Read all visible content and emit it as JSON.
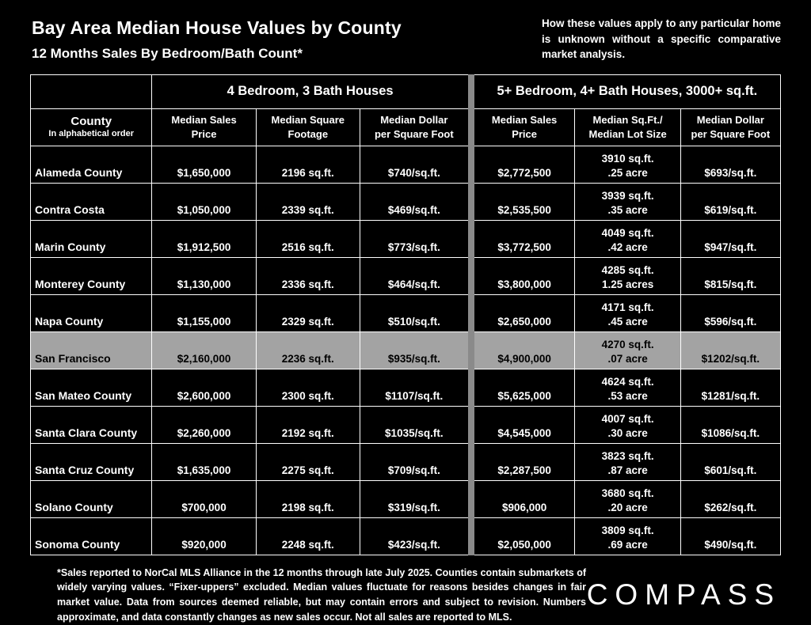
{
  "page": {
    "title": "Bay Area Median House Values by County",
    "subtitle": "12 Months Sales By Bedroom/Bath Count*",
    "disclaimer": "How these values apply to any particular home is unknown without a specific comparative market analysis.",
    "footnote": "*Sales reported to NorCal MLS Alliance in the 12 months through late July 2025. Counties contain submarkets of widely varying values. “Fixer-uppers” excluded. Median values fluctuate for reasons besides changes in fair market value. Data from sources deemed reliable, but may contain errors and subject to revision. Numbers approximate, and data constantly changes as new sales occur. Not all sales are reported to MLS.",
    "logo_text": "COMPASS"
  },
  "colors": {
    "background": "#000000",
    "text": "#ffffff",
    "table_border": "#ffffff",
    "group_divider": "#8a8a8a",
    "highlight_row_bg": "#a3a3a3",
    "highlight_row_text": "#000000"
  },
  "table": {
    "group_headers": [
      "4 Bedroom, 3 Bath Houses",
      "5+ Bedroom, 4+ Bath Houses, 3000+ sq.ft."
    ],
    "county_header": {
      "line1": "County",
      "line2": "In alphabetical order"
    },
    "column_headers": [
      {
        "line1": "Median Sales",
        "line2": "Price"
      },
      {
        "line1": "Median Square",
        "line2": "Footage"
      },
      {
        "line1": "Median Dollar",
        "line2": "per Square Foot"
      },
      {
        "line1": "Median Sales",
        "line2": "Price"
      },
      {
        "line1": "Median Sq.Ft./",
        "line2": "Median Lot Size"
      },
      {
        "line1": "Median Dollar",
        "line2": "per Square Foot"
      }
    ],
    "rows": [
      {
        "county": "Alameda County",
        "highlight": false,
        "cells": [
          "$1,650,000",
          "2196 sq.ft.",
          "$740/sq.ft.",
          "$2,772,500",
          "3910 sq.ft.",
          ".25 acre",
          "$693/sq.ft."
        ]
      },
      {
        "county": "Contra Costa",
        "highlight": false,
        "cells": [
          "$1,050,000",
          "2339 sq.ft.",
          "$469/sq.ft.",
          "$2,535,500",
          "3939 sq.ft.",
          ".35 acre",
          "$619/sq.ft."
        ]
      },
      {
        "county": "Marin County",
        "highlight": false,
        "cells": [
          "$1,912,500",
          "2516 sq.ft.",
          "$773/sq.ft.",
          "$3,772,500",
          "4049 sq.ft.",
          ".42 acre",
          "$947/sq.ft."
        ]
      },
      {
        "county": "Monterey County",
        "highlight": false,
        "cells": [
          "$1,130,000",
          "2336 sq.ft.",
          "$464/sq.ft.",
          "$3,800,000",
          "4285 sq.ft.",
          "1.25 acres",
          "$815/sq.ft."
        ]
      },
      {
        "county": "Napa County",
        "highlight": false,
        "cells": [
          "$1,155,000",
          "2329 sq.ft.",
          "$510/sq.ft.",
          "$2,650,000",
          "4171 sq.ft.",
          ".45 acre",
          "$596/sq.ft."
        ]
      },
      {
        "county": "San Francisco",
        "highlight": true,
        "cells": [
          "$2,160,000",
          "2236 sq.ft.",
          "$935/sq.ft.",
          "$4,900,000",
          "4270 sq.ft.",
          ".07 acre",
          "$1202/sq.ft."
        ]
      },
      {
        "county": "San Mateo County",
        "highlight": false,
        "cells": [
          "$2,600,000",
          "2300 sq.ft.",
          "$1107/sq.ft.",
          "$5,625,000",
          "4624 sq.ft.",
          ".53 acre",
          "$1281/sq.ft."
        ]
      },
      {
        "county": "Santa Clara County",
        "highlight": false,
        "cells": [
          "$2,260,000",
          "2192 sq.ft.",
          "$1035/sq.ft.",
          "$4,545,000",
          "4007 sq.ft.",
          ".30 acre",
          "$1086/sq.ft."
        ]
      },
      {
        "county": "Santa Cruz County",
        "highlight": false,
        "cells": [
          "$1,635,000",
          "2275 sq.ft.",
          "$709/sq.ft.",
          "$2,287,500",
          "3823 sq.ft.",
          ".87 acre",
          "$601/sq.ft."
        ]
      },
      {
        "county": "Solano County",
        "highlight": false,
        "cells": [
          "$700,000",
          "2198 sq.ft.",
          "$319/sq.ft.",
          "$906,000",
          "3680 sq.ft.",
          ".20 acre",
          "$262/sq.ft."
        ]
      },
      {
        "county": "Sonoma County",
        "highlight": false,
        "cells": [
          "$920,000",
          "2248 sq.ft.",
          "$423/sq.ft.",
          "$2,050,000",
          "3809 sq.ft.",
          ".69 acre",
          "$490/sq.ft."
        ]
      }
    ]
  },
  "chart_data": {
    "type": "table",
    "title": "Bay Area Median House Values by County",
    "subtitle": "12 Months Sales By Bedroom/Bath Count*",
    "column_groups": [
      {
        "label": "4 Bedroom, 3 Bath Houses",
        "columns": [
          "Median Sales Price",
          "Median Square Footage",
          "Median Dollar per Square Foot"
        ]
      },
      {
        "label": "5+ Bedroom, 4+ Bath Houses, 3000+ sq.ft.",
        "columns": [
          "Median Sales Price",
          "Median Sq.Ft./Median Lot Size",
          "Median Dollar per Square Foot"
        ]
      }
    ],
    "columns": [
      "County",
      "4bd3ba_median_sales_price_usd",
      "4bd3ba_median_sqft",
      "4bd3ba_median_usd_per_sqft",
      "5bd4ba_median_sales_price_usd",
      "5bd4ba_median_sqft",
      "5bd4ba_median_lot_size",
      "5bd4ba_median_usd_per_sqft"
    ],
    "rows": [
      [
        "Alameda County",
        1650000,
        2196,
        740,
        2772500,
        3910,
        "0.25 acre",
        693
      ],
      [
        "Contra Costa",
        1050000,
        2339,
        469,
        2535500,
        3939,
        "0.35 acre",
        619
      ],
      [
        "Marin County",
        1912500,
        2516,
        773,
        3772500,
        4049,
        "0.42 acre",
        947
      ],
      [
        "Monterey County",
        1130000,
        2336,
        464,
        3800000,
        4285,
        "1.25 acres",
        815
      ],
      [
        "Napa County",
        1155000,
        2329,
        510,
        2650000,
        4171,
        "0.45 acre",
        596
      ],
      [
        "San Francisco",
        2160000,
        2236,
        935,
        4900000,
        4270,
        "0.07 acre",
        1202
      ],
      [
        "San Mateo County",
        2600000,
        2300,
        1107,
        5625000,
        4624,
        "0.53 acre",
        1281
      ],
      [
        "Santa Clara County",
        2260000,
        2192,
        1035,
        4545000,
        4007,
        "0.30 acre",
        1086
      ],
      [
        "Santa Cruz County",
        1635000,
        2275,
        709,
        2287500,
        3823,
        "0.87 acre",
        601
      ],
      [
        "Solano County",
        700000,
        2198,
        319,
        906000,
        3680,
        "0.20 acre",
        262
      ],
      [
        "Sonoma County",
        920000,
        2248,
        423,
        2050000,
        3809,
        "0.69 acre",
        490
      ]
    ],
    "highlighted_row": "San Francisco",
    "source_note": "*Sales reported to NorCal MLS Alliance in the 12 months through late July 2025."
  }
}
